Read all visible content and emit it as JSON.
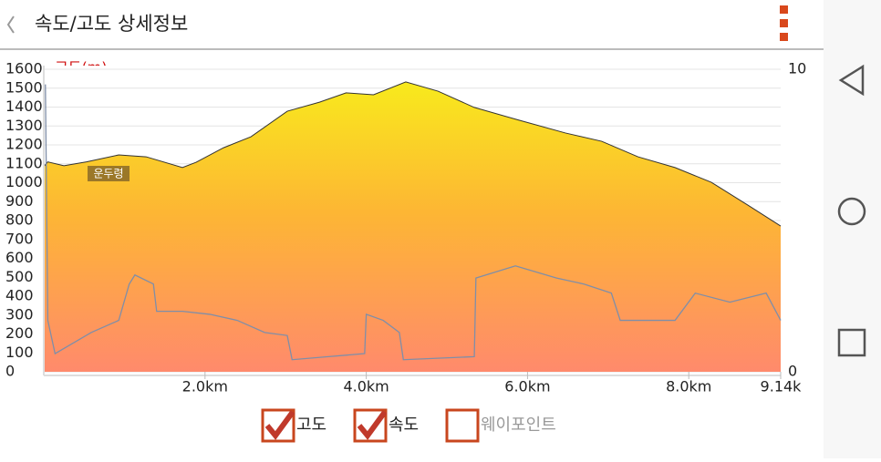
{
  "header": {
    "title": "속도/고도 상세정보"
  },
  "chart_data": {
    "type": "area-line",
    "y_label": "고도(m)",
    "annotation": "운두령",
    "xlim": [
      0,
      9.14
    ],
    "xticks": [
      {
        "value": 2.0,
        "label": "2.0km"
      },
      {
        "value": 4.0,
        "label": "4.0km"
      },
      {
        "value": 6.0,
        "label": "6.0km"
      },
      {
        "value": 8.0,
        "label": "8.0km"
      },
      {
        "value": 9.14,
        "label": "9.14k"
      }
    ],
    "ylim": [
      0,
      1600
    ],
    "yticks": [
      0,
      100,
      200,
      300,
      400,
      500,
      600,
      700,
      800,
      900,
      1000,
      1100,
      1200,
      1300,
      1400,
      1500,
      1600
    ],
    "y2lim": [
      0,
      10
    ],
    "y2ticks": [
      0,
      10
    ],
    "grid": true,
    "series": [
      {
        "kind": "area",
        "color": "#333333",
        "x": [
          0,
          0.05,
          0.25,
          0.53,
          0.93,
          1.27,
          1.72,
          1.89,
          2.23,
          2.57,
          3.02,
          3.42,
          3.75,
          4.09,
          4.49,
          4.89,
          5.34,
          5.9,
          6.47,
          6.92,
          7.37,
          7.83,
          8.28,
          8.73,
          9.14
        ],
        "values": [
          1085,
          1110,
          1090,
          1110,
          1147,
          1137,
          1080,
          1108,
          1185,
          1243,
          1378,
          1426,
          1475,
          1465,
          1533,
          1484,
          1398,
          1330,
          1263,
          1219,
          1137,
          1080,
          1002,
          882,
          771
        ]
      },
      {
        "kind": "line",
        "axis": "y2",
        "color": "#7f8ea8",
        "x": [
          0.02,
          0.05,
          0.14,
          0.59,
          0.93,
          1.06,
          1.13,
          1.36,
          1.4,
          1.72,
          2.06,
          2.4,
          2.74,
          3.02,
          3.08,
          3.53,
          3.98,
          4.0,
          4.21,
          4.41,
          4.46,
          5.34,
          5.36,
          5.85,
          6.36,
          6.7,
          7.04,
          7.15,
          7.83,
          8.08,
          8.51,
          8.96,
          9.14
        ],
        "values": [
          9.5,
          1.7,
          0.6,
          1.3,
          1.7,
          2.9,
          3.2,
          2.9,
          2.0,
          2.0,
          1.9,
          1.7,
          1.3,
          1.2,
          0.4,
          0.5,
          0.6,
          1.9,
          1.7,
          1.3,
          0.4,
          0.5,
          3.1,
          3.5,
          3.1,
          2.9,
          2.6,
          1.7,
          1.7,
          2.6,
          2.3,
          2.6,
          1.7
        ]
      }
    ],
    "legend": [
      {
        "label": "고도",
        "checked": true
      },
      {
        "label": "속도",
        "checked": true
      },
      {
        "label": "웨이포인트",
        "checked": false
      }
    ]
  }
}
